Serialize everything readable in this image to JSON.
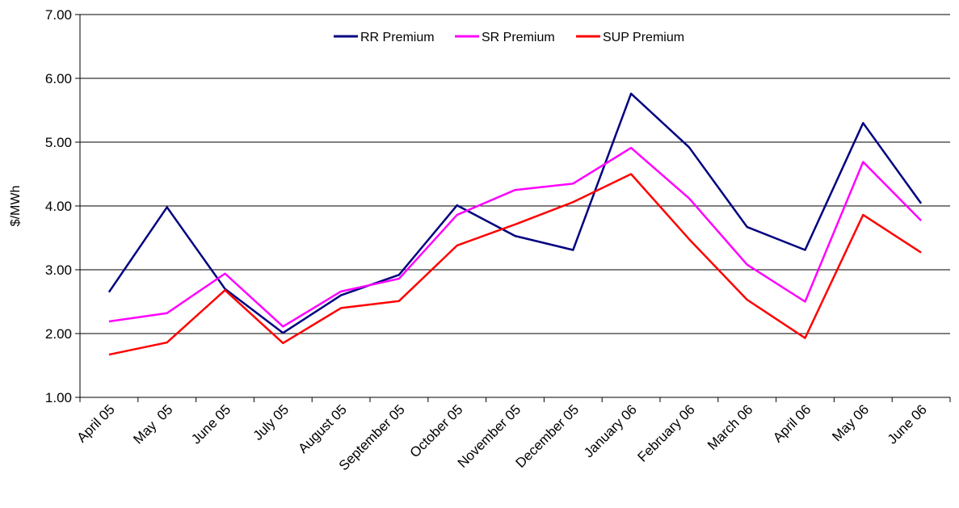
{
  "chart_data": {
    "type": "line",
    "y_label": "$/MWh",
    "categories": [
      "April 05",
      "May  05",
      "June 05",
      "July 05",
      "August 05",
      "September 05",
      "October 05",
      "November 05",
      "December 05",
      "January 06",
      "February 06",
      "March 06",
      "April 06",
      "May 06",
      "June 06"
    ],
    "series": [
      {
        "name": "RR Premium",
        "color": "#000080",
        "values": [
          2.65,
          3.98,
          2.7,
          2.01,
          2.6,
          2.92,
          4.01,
          3.53,
          3.31,
          5.76,
          4.92,
          3.67,
          3.31,
          5.3,
          4.04
        ]
      },
      {
        "name": "SR Premium",
        "color": "#ff00ff",
        "values": [
          2.19,
          2.32,
          2.94,
          2.11,
          2.66,
          2.86,
          3.86,
          4.25,
          4.35,
          4.91,
          4.12,
          3.08,
          2.5,
          4.69,
          3.77
        ]
      },
      {
        "name": "SUP Premium",
        "color": "#ff0000",
        "values": [
          1.67,
          1.86,
          2.68,
          1.85,
          2.4,
          2.51,
          3.38,
          3.71,
          4.06,
          4.5,
          3.48,
          2.53,
          1.93,
          3.86,
          3.27
        ]
      }
    ],
    "ylim": [
      1,
      7
    ],
    "yticks": [
      {
        "value": 1,
        "label": "1.00"
      },
      {
        "value": 2,
        "label": "2.00"
      },
      {
        "value": 3,
        "label": "3.00"
      },
      {
        "value": 4,
        "label": "4.00"
      },
      {
        "value": 5,
        "label": "5.00"
      },
      {
        "value": 6,
        "label": "6.00"
      },
      {
        "value": 7,
        "label": "7.00"
      }
    ],
    "grid": true,
    "legend": "top"
  }
}
